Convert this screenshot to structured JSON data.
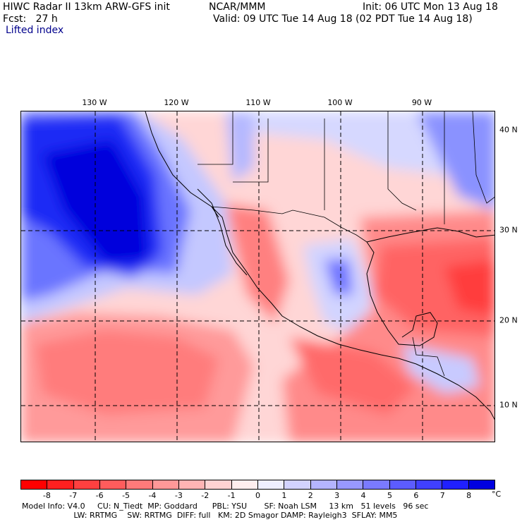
{
  "header": {
    "model_line": "HIWC Radar II 13km ARW-GFS init",
    "org": "NCAR/MMM",
    "init": "Init: 06 UTC Mon 13 Aug 18",
    "fcst": "Fcst:   27 h",
    "valid": "Valid: 09 UTC Tue 14 Aug 18 (02 PDT Tue 14 Aug 18)",
    "field": "Lifted index"
  },
  "map": {
    "lon_labels": [
      "130 W",
      "120 W",
      "110 W",
      "100 W",
      "90 W"
    ],
    "lat_labels": [
      "40 N",
      "30 N",
      "20 N",
      "10 N"
    ]
  },
  "colorbar": {
    "ticks": [
      "-8",
      "-7",
      "-6",
      "-5",
      "-4",
      "-3",
      "-2",
      "-1",
      "0",
      "1",
      "2",
      "3",
      "4",
      "5",
      "6",
      "7",
      "8"
    ],
    "unit": "°C",
    "colors": [
      "#ff0000",
      "#ff2020",
      "#ff4040",
      "#ff5c5c",
      "#ff7a7a",
      "#ff9898",
      "#ffb4b4",
      "#ffd2d2",
      "#ffeeee",
      "#eeeeff",
      "#d2d2ff",
      "#b4b4ff",
      "#9898ff",
      "#7a7aff",
      "#5c5cff",
      "#4040ff",
      "#2020ff",
      "#0000e0"
    ]
  },
  "footer": {
    "line1": "Model Info: V4.0     CU: N_Tiedt  MP: Goddard      PBL: YSU       SF: Noah LSM     13 km   51 levels   96 sec",
    "line2": "                     LW: RRTMG    SW: RRTMG  DIFF: full   KM: 2D Smagor DAMP: Rayleigh3  SFLAY: MM5"
  }
}
